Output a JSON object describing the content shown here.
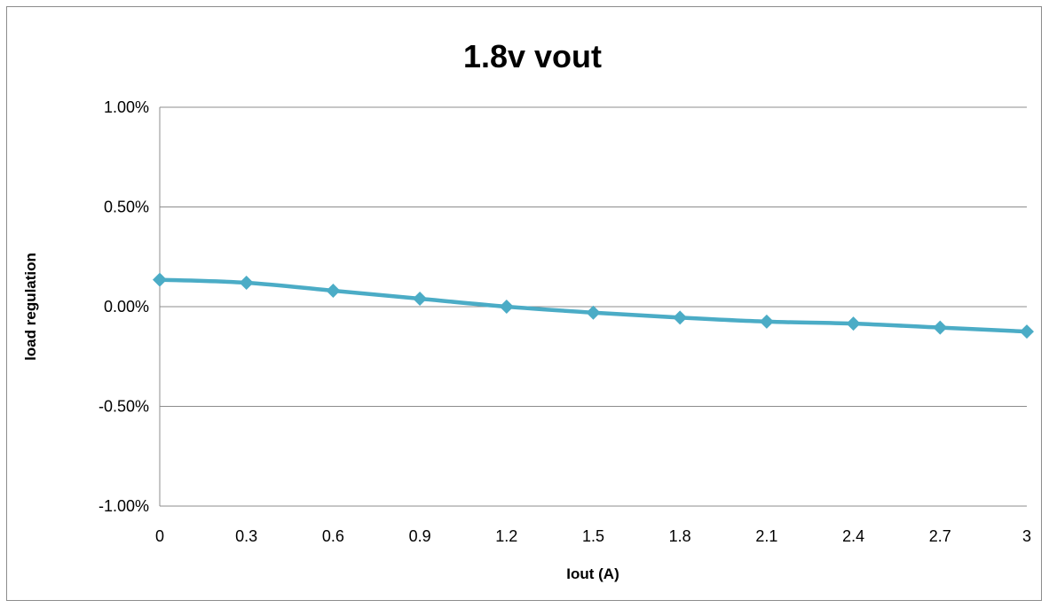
{
  "chart_data": {
    "type": "line",
    "title": "1.8v vout",
    "xlabel": "Iout (A)",
    "ylabel": "load regulation",
    "categories": [
      "0",
      "0.3",
      "0.6",
      "0.9",
      "1.2",
      "1.5",
      "1.8",
      "2.1",
      "2.4",
      "2.7",
      "3"
    ],
    "y_ticks": [
      "1.00%",
      "0.50%",
      "0.00%",
      "-0.50%",
      "-1.00%"
    ],
    "ylim": [
      -1.0,
      1.0
    ],
    "grid": "horizontal",
    "legend": "none",
    "series": [
      {
        "values": [
          0.135,
          0.12,
          0.08,
          0.04,
          0.0,
          -0.03,
          -0.055,
          -0.075,
          -0.085,
          -0.105,
          -0.125
        ],
        "color": "#4bacc6"
      }
    ]
  }
}
